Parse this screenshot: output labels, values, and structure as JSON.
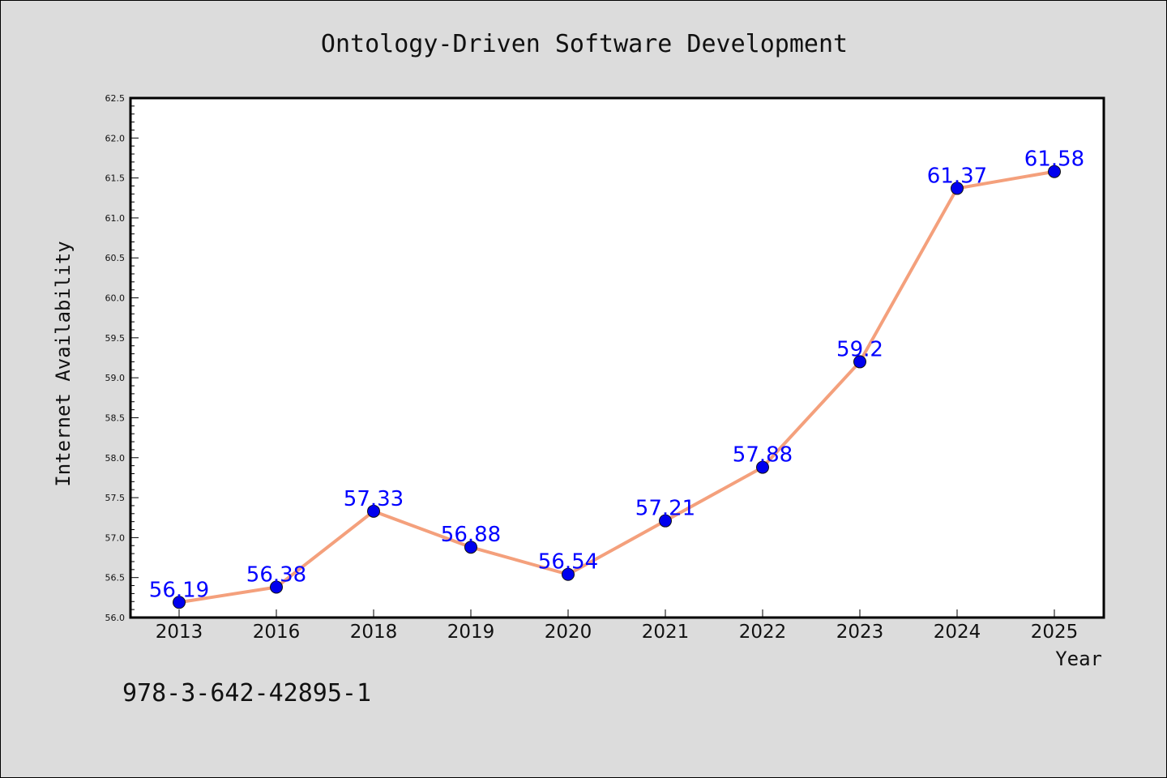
{
  "chart_data": {
    "type": "line",
    "title": "Ontology-Driven Software Development",
    "xlabel": "Year",
    "ylabel": "Internet Availability",
    "categories": [
      "2013",
      "2016",
      "2018",
      "2019",
      "2020",
      "2021",
      "2022",
      "2023",
      "2024",
      "2025"
    ],
    "series": [
      {
        "values": [
          56.19,
          56.38,
          57.33,
          56.88,
          56.54,
          57.21,
          57.88,
          59.2,
          61.37,
          61.58
        ],
        "data_labels": [
          "56.19",
          "56.38",
          "57.33",
          "56.88",
          "56.54",
          "57.21",
          "57.88",
          "59.2",
          "61.37",
          "61.58"
        ],
        "line_color": "#f4a07c",
        "marker_color": "#0000ee"
      }
    ],
    "ylim": [
      56.0,
      62.5
    ],
    "yticks": [
      "56.0",
      "56.5",
      "57.0",
      "57.5",
      "58.0",
      "58.5",
      "59.0",
      "59.5",
      "60.0",
      "60.5",
      "61.0",
      "61.5",
      "62.0",
      "62.5"
    ],
    "grid": false,
    "legend": "none"
  },
  "footer_text": "978-3-642-42895-1",
  "colors": {
    "background": "#dcdcdc",
    "plot_area": "#ffffff",
    "label": "#0000ff"
  }
}
